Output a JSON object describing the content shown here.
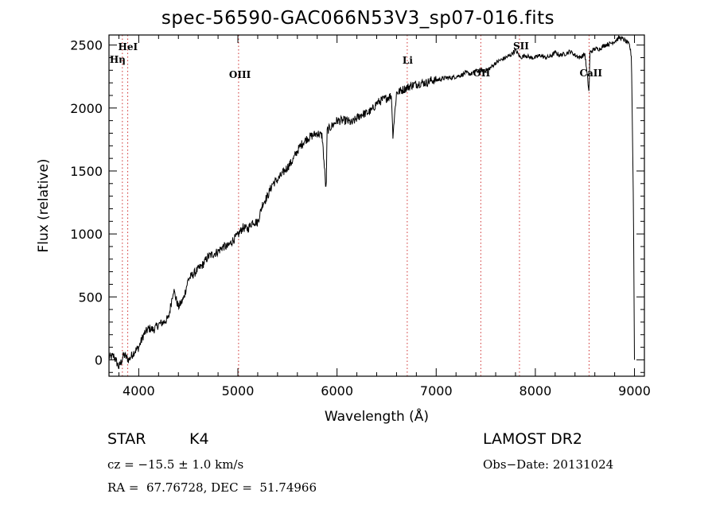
{
  "title": "spec-56590-GAC066N53V3_sp07-016.fits",
  "chart_data": {
    "type": "line",
    "xlabel": "Wavelength (Å)",
    "ylabel": "Flux (relative)",
    "xlim": [
      3700,
      9100
    ],
    "ylim": [
      -130,
      2580
    ],
    "x_ticks": [
      4000,
      5000,
      6000,
      7000,
      8000,
      9000
    ],
    "y_ticks": [
      0,
      500,
      1000,
      1500,
      2000,
      2500
    ],
    "grid": false,
    "series": [
      {
        "x": [
          3700,
          3750,
          3800,
          3850,
          3900,
          3950,
          4000,
          4050,
          4100,
          4150,
          4200,
          4250,
          4300,
          4350,
          4400,
          4450,
          4500,
          4550,
          4600,
          4650,
          4700,
          4750,
          4800,
          4850,
          4900,
          4950,
          5000,
          5050,
          5100,
          5150,
          5200,
          5250,
          5300,
          5350,
          5400,
          5450,
          5500,
          5550,
          5600,
          5650,
          5700,
          5750,
          5800,
          5850,
          5890,
          5900,
          5950,
          6000,
          6050,
          6100,
          6150,
          6200,
          6250,
          6300,
          6350,
          6400,
          6450,
          6500,
          6550,
          6563,
          6600,
          6650,
          6700,
          6750,
          6800,
          6850,
          6900,
          6950,
          7000,
          7050,
          7100,
          7150,
          7200,
          7250,
          7300,
          7350,
          7400,
          7450,
          7500,
          7550,
          7600,
          7650,
          7700,
          7750,
          7800,
          7850,
          7900,
          7950,
          8000,
          8050,
          8100,
          8150,
          8200,
          8250,
          8300,
          8350,
          8400,
          8450,
          8500,
          8542,
          8550,
          8600,
          8650,
          8700,
          8750,
          8800,
          8850,
          8900,
          8950,
          8970,
          8990,
          9000
        ],
        "y": [
          20,
          30,
          -60,
          40,
          0,
          60,
          100,
          200,
          250,
          240,
          280,
          300,
          330,
          560,
          420,
          480,
          640,
          680,
          720,
          760,
          820,
          840,
          860,
          900,
          900,
          950,
          990,
          1050,
          1040,
          1100,
          1090,
          1240,
          1300,
          1400,
          1430,
          1480,
          1530,
          1580,
          1660,
          1720,
          1760,
          1780,
          1800,
          1780,
          1330,
          1820,
          1860,
          1900,
          1900,
          1900,
          1880,
          1920,
          1950,
          1960,
          1980,
          2040,
          2060,
          2080,
          2100,
          1780,
          2120,
          2140,
          2160,
          2180,
          2190,
          2200,
          2200,
          2220,
          2220,
          2230,
          2240,
          2240,
          2250,
          2260,
          2280,
          2270,
          2290,
          2300,
          2300,
          2320,
          2360,
          2380,
          2400,
          2420,
          2460,
          2400,
          2420,
          2400,
          2400,
          2420,
          2400,
          2410,
          2440,
          2420,
          2430,
          2450,
          2420,
          2400,
          2430,
          2120,
          2440,
          2470,
          2470,
          2500,
          2510,
          2530,
          2560,
          2540,
          2500,
          2400,
          1200,
          0
        ]
      }
    ],
    "lines": [
      {
        "label": "HeI",
        "x": 3889
      },
      {
        "label": "Hη",
        "x": 3835
      },
      {
        "label": "OIII",
        "x": 5007
      },
      {
        "label": "Li",
        "x": 6708
      },
      {
        "label": "OH",
        "x": 7450
      },
      {
        "label": "SII",
        "x": 7840
      },
      {
        "label": "CaII",
        "x": 8542
      }
    ]
  },
  "info": {
    "class_label": "STAR",
    "subclass": "K4",
    "cz": "cz = −15.5 ± 1.0 km/s",
    "coords": "RA =  67.76728, DEC =  51.74966",
    "survey": "LAMOST DR2",
    "obs_date": "Obs−Date: 20131024"
  },
  "colors": {
    "axis": "#000000",
    "spectrum": "#000000",
    "line_marker": "#d03030"
  }
}
